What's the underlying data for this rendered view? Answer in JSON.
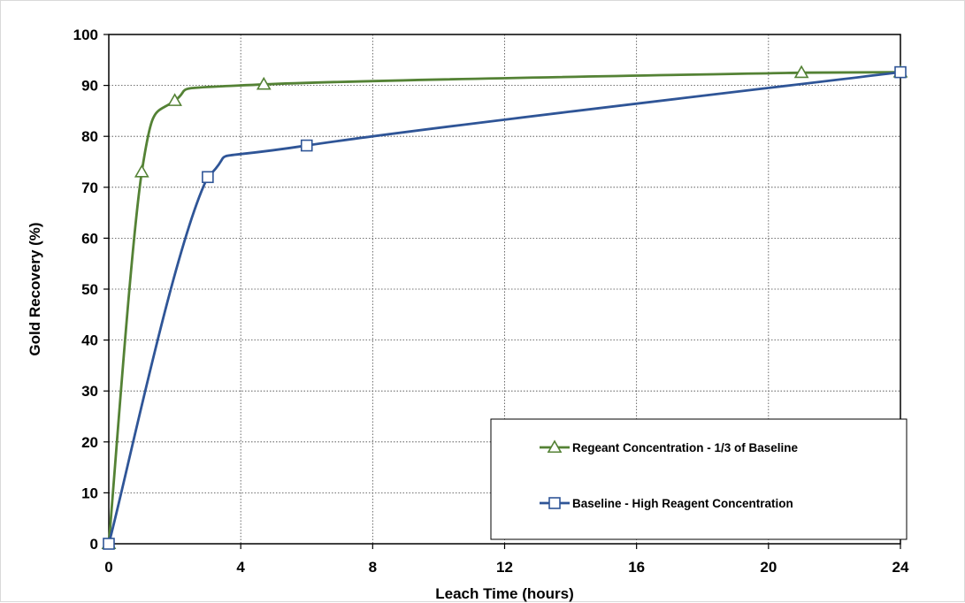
{
  "chart_data": {
    "type": "line",
    "title": "",
    "xlabel": "Leach Time (hours)",
    "ylabel": "Gold Recovery (%)",
    "xlim": [
      0,
      24
    ],
    "ylim": [
      0,
      100
    ],
    "x_ticks": [
      0,
      4,
      8,
      12,
      16,
      20,
      24
    ],
    "y_ticks": [
      0,
      10,
      20,
      30,
      40,
      50,
      60,
      70,
      80,
      90,
      100
    ],
    "grid": true,
    "grid_style": "dotted",
    "legend_position": "bottom-right",
    "smooth": true,
    "series": [
      {
        "name": "Regeant Concentration - 1/3 of Baseline",
        "marker": "triangle",
        "color": "#548235",
        "x": [
          0,
          1,
          2,
          4.7,
          21,
          24
        ],
        "y": [
          0,
          73,
          87,
          90.2,
          92.5,
          92.6
        ]
      },
      {
        "name": "Baseline - High Reagent Concentration",
        "marker": "square",
        "color": "#2f5597",
        "x": [
          0,
          3,
          6,
          24
        ],
        "y": [
          0,
          72,
          78.2,
          92.6
        ]
      }
    ]
  }
}
